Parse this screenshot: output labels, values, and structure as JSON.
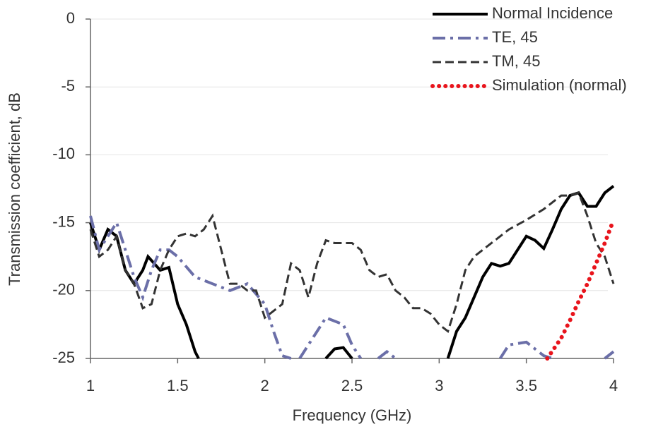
{
  "chart_data": {
    "type": "line",
    "xlabel": "Frequency (GHz)",
    "ylabel": "Transmission coefficient, dB",
    "xlim": [
      1,
      4
    ],
    "xticks": [
      1,
      1.5,
      2,
      2.5,
      3,
      3.5,
      4
    ],
    "ylim": [
      -25,
      0
    ],
    "yticks": [
      0,
      -5,
      -10,
      -15,
      -20,
      -25
    ],
    "grid": true,
    "legend": "top-right",
    "series": [
      {
        "name": "Normal Incidence",
        "color": "#000000",
        "dash": "solid",
        "x": [
          1.0,
          1.05,
          1.1,
          1.15,
          1.2,
          1.25,
          1.3,
          1.33,
          1.4,
          1.45,
          1.5,
          1.55,
          1.6,
          1.62,
          2.0,
          2.35,
          2.4,
          2.45,
          2.5,
          2.8,
          3.05,
          3.1,
          3.15,
          3.2,
          3.25,
          3.3,
          3.35,
          3.4,
          3.45,
          3.5,
          3.55,
          3.6,
          3.65,
          3.7,
          3.75,
          3.8,
          3.85,
          3.9,
          3.95,
          4.0
        ],
        "values": [
          -15,
          -17,
          -15.5,
          -16,
          -18.5,
          -19.5,
          -18.5,
          -17.5,
          -18.5,
          -18.3,
          -21,
          -22.5,
          -24.5,
          -25,
          null,
          -25,
          -24.3,
          -24.2,
          -25,
          null,
          -25,
          -23,
          -22,
          -20.5,
          -19,
          -18,
          -18.2,
          -18,
          -17,
          -16,
          -16.3,
          -16.9,
          -15.5,
          -14,
          -13,
          -12.8,
          -13.8,
          -13.8,
          -12.8,
          -12.3
        ]
      },
      {
        "name": "TE, 45",
        "color": "#6b6fa8",
        "dash": "dashdot",
        "x": [
          1.0,
          1.05,
          1.1,
          1.15,
          1.2,
          1.25,
          1.3,
          1.35,
          1.4,
          1.45,
          1.5,
          1.6,
          1.7,
          1.8,
          1.9,
          2.0,
          2.05,
          2.1,
          2.15,
          2.17,
          2.2,
          2.3,
          2.35,
          2.45,
          2.5,
          2.55,
          2.6,
          2.65,
          2.7,
          2.75,
          3.0,
          3.35,
          3.4,
          3.5,
          3.55,
          3.6,
          3.65,
          3.8,
          3.95,
          4.0
        ],
        "values": [
          -14.5,
          -17,
          -16,
          -15,
          -17,
          -19,
          -20.5,
          -18.5,
          -17,
          -17,
          -17.5,
          -19,
          -19.5,
          -20,
          -19.5,
          -21,
          -23,
          -24.8,
          -25,
          null,
          -25,
          -23,
          -22,
          -22.5,
          -24,
          -25,
          null,
          -25,
          -24.5,
          -25,
          null,
          -25,
          -24,
          -23.8,
          -24.3,
          -24.8,
          -25,
          null,
          -25,
          -24.5
        ]
      },
      {
        "name": "TM, 45",
        "color": "#333333",
        "dash": "dashed",
        "x": [
          1.0,
          1.05,
          1.1,
          1.15,
          1.2,
          1.25,
          1.3,
          1.35,
          1.4,
          1.45,
          1.5,
          1.55,
          1.6,
          1.65,
          1.7,
          1.75,
          1.8,
          1.85,
          1.9,
          1.95,
          2.0,
          2.05,
          2.1,
          2.15,
          2.2,
          2.25,
          2.3,
          2.35,
          2.4,
          2.45,
          2.5,
          2.55,
          2.6,
          2.65,
          2.7,
          2.75,
          2.8,
          2.85,
          2.9,
          2.95,
          3.0,
          3.05,
          3.1,
          3.15,
          3.2,
          3.3,
          3.4,
          3.5,
          3.6,
          3.7,
          3.75,
          3.8,
          3.85,
          3.9,
          3.95,
          4.0
        ],
        "values": [
          -15.5,
          -17.5,
          -17,
          -16,
          -18.5,
          -19.5,
          -21.3,
          -21,
          -18.5,
          -17,
          -16,
          -15.8,
          -16,
          -15.5,
          -14.5,
          -17,
          -19.5,
          -19.5,
          -20,
          -20,
          -22,
          -21.5,
          -21,
          -18,
          -18.5,
          -20.5,
          -18,
          -16.3,
          -16.5,
          -16.5,
          -16.5,
          -17,
          -18.5,
          -19,
          -18.8,
          -20,
          -20.5,
          -21.3,
          -21.3,
          -21.7,
          -22.5,
          -23,
          -21,
          -18.5,
          -17.5,
          -16.5,
          -15.5,
          -14.8,
          -14,
          -13,
          -13,
          -12.8,
          -14.5,
          -16.5,
          -17.5,
          -19.5
        ]
      },
      {
        "name": "Simulation (normal)",
        "color": "#e8141c",
        "dash": "dotted",
        "x": [
          3.62,
          3.7,
          3.75,
          3.8,
          3.85,
          3.9,
          3.95,
          4.0
        ],
        "values": [
          -25,
          -23.5,
          -22.2,
          -20.8,
          -19.5,
          -18,
          -16.5,
          -14.8
        ]
      }
    ]
  }
}
